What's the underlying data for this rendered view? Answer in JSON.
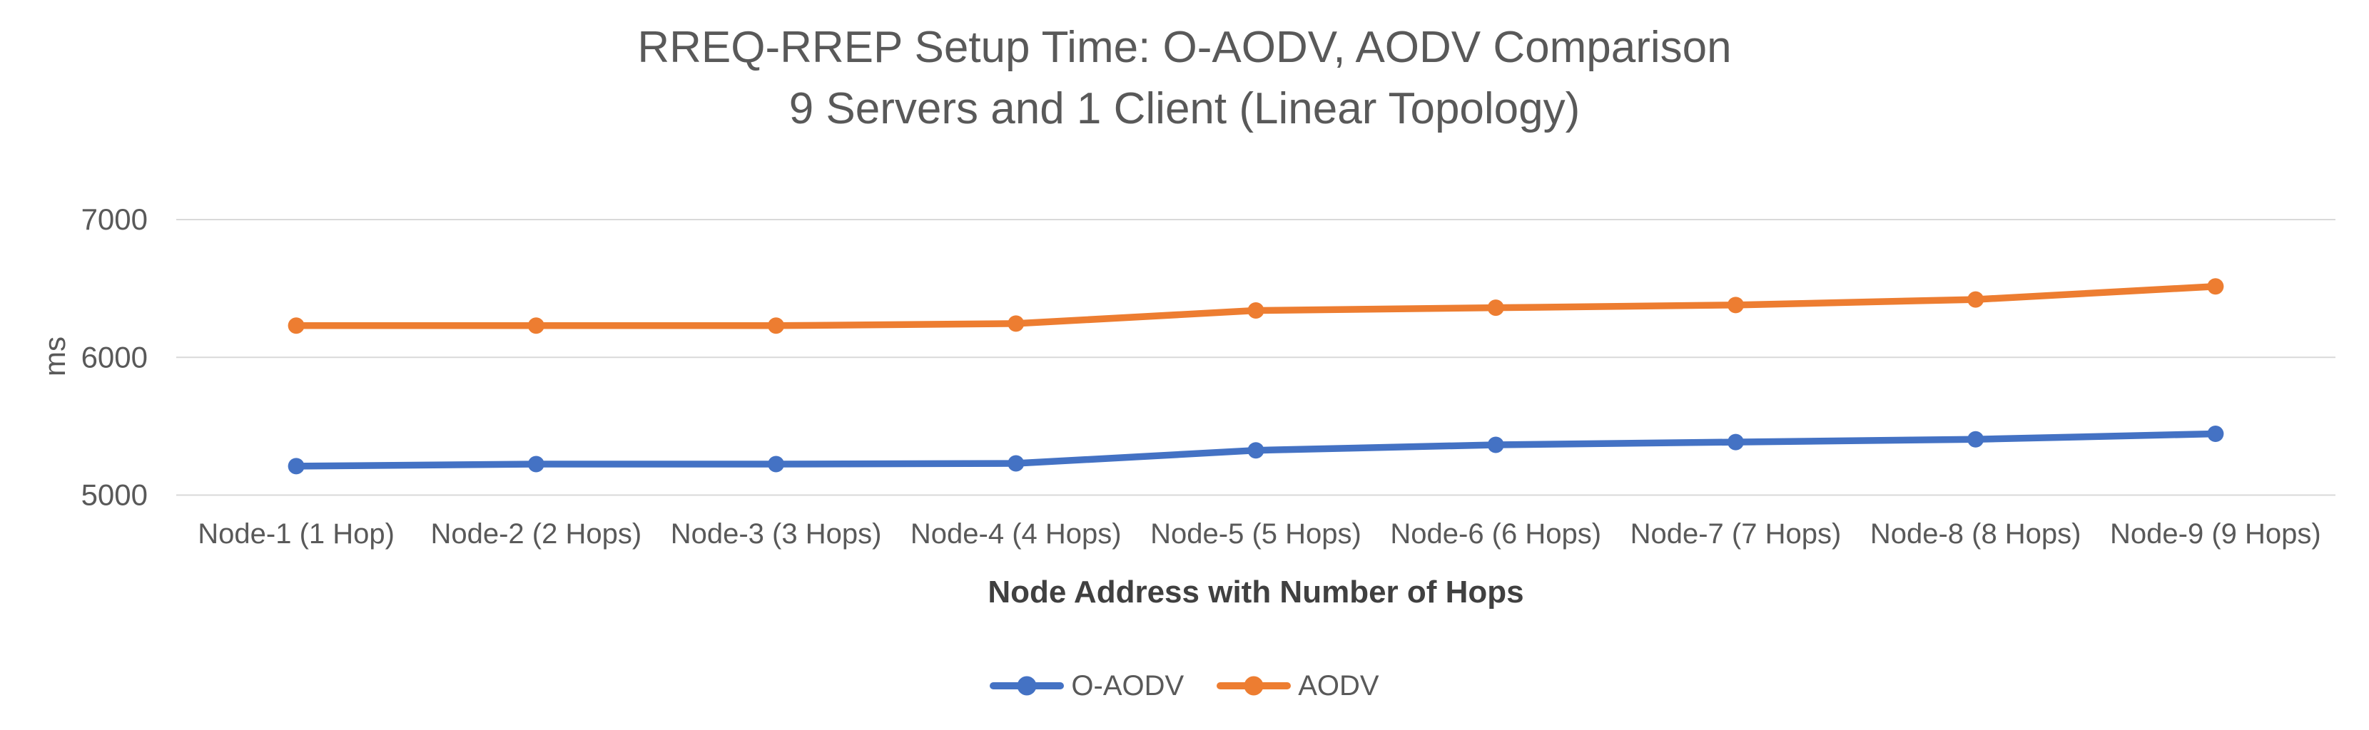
{
  "chart_data": {
    "type": "line",
    "title": "RREQ-RREP Setup Time: O-AODV, AODV Comparison",
    "subtitle": "9 Servers and 1 Client (Linear Topology)",
    "xlabel": "Node Address with Number of Hops",
    "ylabel": "ms",
    "categories": [
      "Node-1 (1 Hop)",
      "Node-2 (2 Hops)",
      "Node-3 (3 Hops)",
      "Node-4 (4 Hops)",
      "Node-5 (5 Hops)",
      "Node-6 (6 Hops)",
      "Node-7 (7 Hops)",
      "Node-8 (8 Hops)",
      "Node-9 (9 Hops)"
    ],
    "series": [
      {
        "name": "O-AODV",
        "color": "#4472C4",
        "values": [
          5210,
          5225,
          5225,
          5230,
          5325,
          5365,
          5385,
          5405,
          5445
        ]
      },
      {
        "name": "AODV",
        "color": "#ED7D31",
        "values": [
          6230,
          6230,
          6230,
          6245,
          6340,
          6360,
          6380,
          6420,
          6515
        ]
      }
    ],
    "ylim": [
      5000,
      7000
    ],
    "yticks": [
      5000,
      6000,
      7000
    ],
    "grid": "horizontal",
    "legend_position": "bottom",
    "title_color": "#595959",
    "tick_color": "#595959",
    "grid_color": "#D9D9D9"
  }
}
